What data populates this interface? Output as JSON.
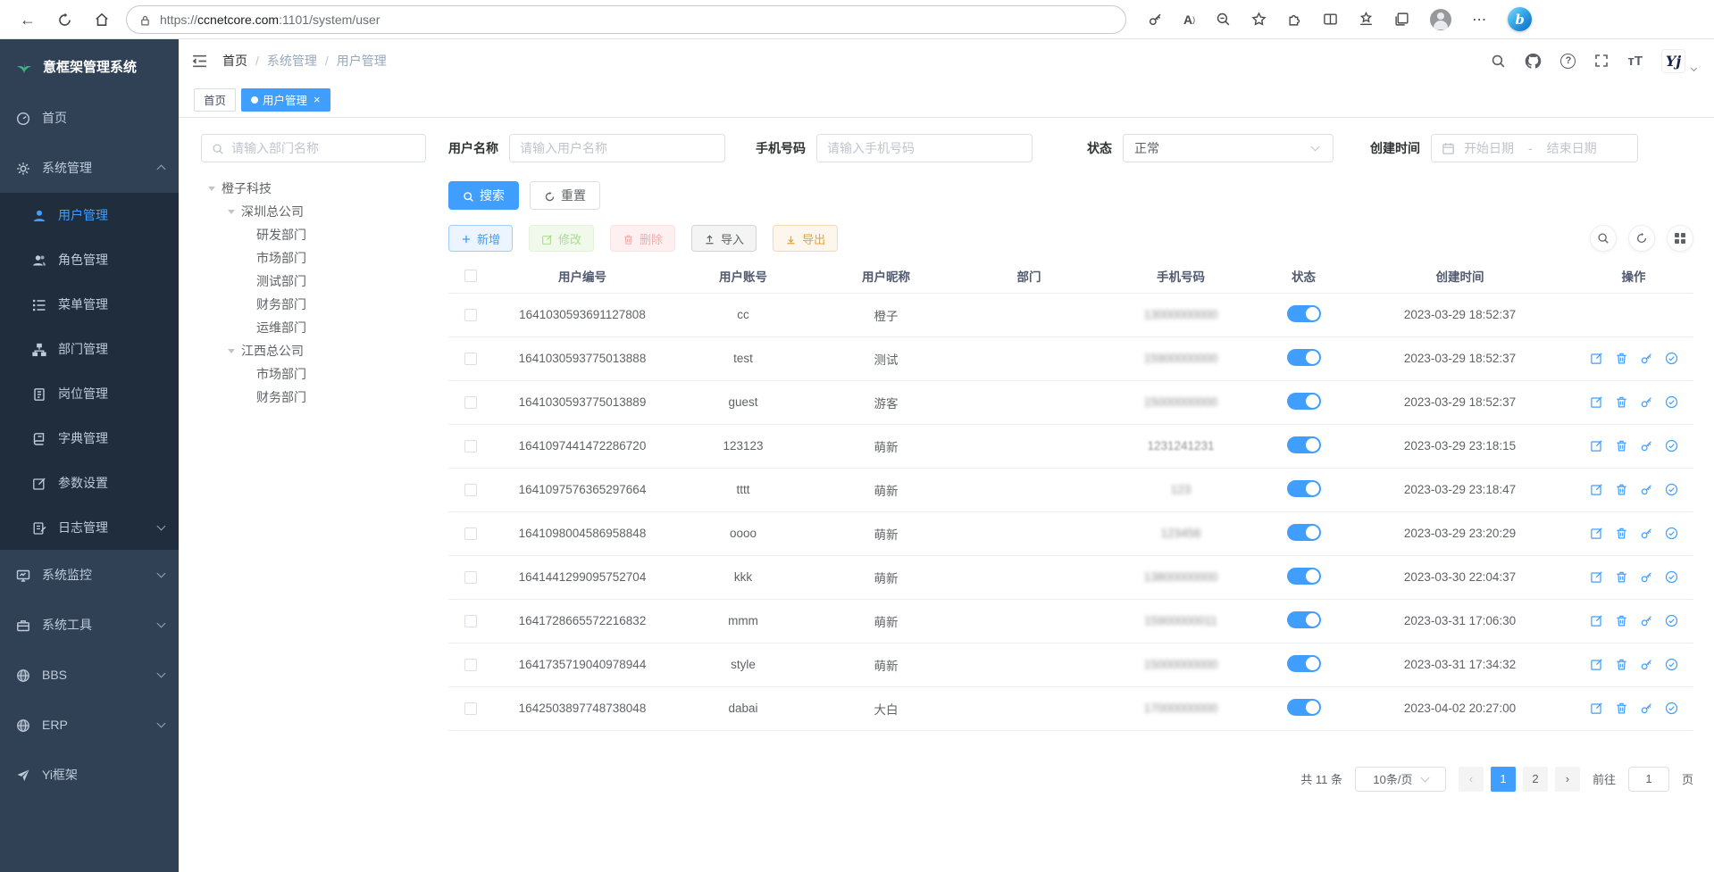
{
  "browser": {
    "url_scheme": "https://",
    "url_host": "ccnetcore.com",
    "url_path": ":1101/system/user"
  },
  "logo": {
    "title": "意框架管理系统"
  },
  "menu": {
    "items": [
      "首页",
      "系统管理",
      "用户管理",
      "角色管理",
      "菜单管理",
      "部门管理",
      "岗位管理",
      "字典管理",
      "参数设置",
      "日志管理",
      "系统监控",
      "系统工具",
      "BBS",
      "ERP",
      "Yi框架"
    ]
  },
  "breadcrumb": [
    "首页",
    "系统管理",
    "用户管理"
  ],
  "tabs": {
    "home": "首页",
    "active": "用户管理",
    "close": "×"
  },
  "navbar": {
    "font_size_icon_text": "тT",
    "logo_badge": "Yj"
  },
  "filters": {
    "dept_search_placeholder": "请输入部门名称",
    "username": {
      "label": "用户名称",
      "placeholder": "请输入用户名称"
    },
    "phone": {
      "label": "手机号码",
      "placeholder": "请输入手机号码"
    },
    "status": {
      "label": "状态",
      "value": "正常"
    },
    "created": {
      "label": "创建时间",
      "start_placeholder": "开始日期",
      "separator": "-",
      "end_placeholder": "结束日期"
    }
  },
  "tree": [
    "橙子科技",
    "深圳总公司",
    "研发部门",
    "市场部门",
    "测试部门",
    "财务部门",
    "运维部门",
    "江西总公司",
    "市场部门",
    "财务部门"
  ],
  "actions": {
    "search": "搜索",
    "reset": "重置",
    "add": "新增",
    "modify": "修改",
    "remove": "删除",
    "import": "导入",
    "export": "导出"
  },
  "table": {
    "columns": [
      "用户编号",
      "用户账号",
      "用户昵称",
      "部门",
      "手机号码",
      "状态",
      "创建时间",
      "操作"
    ],
    "rows": [
      {
        "id": "1641030593691127808",
        "account": "cc",
        "nickname": "橙子",
        "dept": "",
        "phone": "13000000000",
        "phone_blur": "heavy",
        "status": true,
        "created": "2023-03-29 18:52:37",
        "has_actions": false
      },
      {
        "id": "1641030593775013888",
        "account": "test",
        "nickname": "测试",
        "dept": "",
        "phone": "15900000000",
        "phone_blur": "heavy",
        "status": true,
        "created": "2023-03-29 18:52:37",
        "has_actions": true
      },
      {
        "id": "1641030593775013889",
        "account": "guest",
        "nickname": "游客",
        "dept": "",
        "phone": "15000000000",
        "phone_blur": "heavy",
        "status": true,
        "created": "2023-03-29 18:52:37",
        "has_actions": true
      },
      {
        "id": "1641097441472286720",
        "account": "123123",
        "nickname": "萌新",
        "dept": "",
        "phone": "1231241231",
        "phone_blur": "light",
        "status": true,
        "created": "2023-03-29 23:18:15",
        "has_actions": true
      },
      {
        "id": "1641097576365297664",
        "account": "tttt",
        "nickname": "萌新",
        "dept": "",
        "phone": "123",
        "phone_blur": "heavy",
        "status": true,
        "created": "2023-03-29 23:18:47",
        "has_actions": true
      },
      {
        "id": "1641098004586958848",
        "account": "oooo",
        "nickname": "萌新",
        "dept": "",
        "phone": "123456",
        "phone_blur": "heavy",
        "status": true,
        "created": "2023-03-29 23:20:29",
        "has_actions": true
      },
      {
        "id": "1641441299095752704",
        "account": "kkk",
        "nickname": "萌新",
        "dept": "",
        "phone": "13800000000",
        "phone_blur": "heavy",
        "status": true,
        "created": "2023-03-30 22:04:37",
        "has_actions": true
      },
      {
        "id": "1641728665572216832",
        "account": "mmm",
        "nickname": "萌新",
        "dept": "",
        "phone": "15900000011",
        "phone_blur": "heavy",
        "status": true,
        "created": "2023-03-31 17:06:30",
        "has_actions": true
      },
      {
        "id": "1641735719040978944",
        "account": "style",
        "nickname": "萌新",
        "dept": "",
        "phone": "15000000000",
        "phone_blur": "heavy",
        "status": true,
        "created": "2023-03-31 17:34:32",
        "has_actions": true
      },
      {
        "id": "1642503897748738048",
        "account": "dabai",
        "nickname": "大白",
        "dept": "",
        "phone": "17000000000",
        "phone_blur": "heavy",
        "status": true,
        "created": "2023-04-02 20:27:00",
        "has_actions": true
      }
    ]
  },
  "pagination": {
    "total": "共 11 条",
    "page_size": "10条/页",
    "pages": [
      "1",
      "2"
    ],
    "current_page": "1",
    "goto_label": "前往",
    "goto_value": "1",
    "page_unit": "页"
  },
  "colors": {
    "accent": "#409eff",
    "sidebar_bg": "#304156",
    "submenu_bg": "#1f2d3d",
    "toggle_on": "#409eff"
  },
  "icons": {
    "browser": [
      "back-icon",
      "refresh-icon",
      "home-icon",
      "lock-icon",
      "key-icon",
      "read-aloud-icon",
      "zoom-icon",
      "add-favorite-icon",
      "extensions-icon",
      "split-screen-icon",
      "favorites-bar-icon",
      "collections-icon",
      "profile-avatar",
      "more-icon",
      "copilot-icon"
    ],
    "navbar": [
      "search-icon",
      "github-icon",
      "help-icon",
      "fullscreen-icon",
      "font-size-icon",
      "caret-down-icon"
    ],
    "row_ops": [
      "edit-icon",
      "delete-icon",
      "reset-password-icon",
      "assign-role-icon"
    ]
  }
}
